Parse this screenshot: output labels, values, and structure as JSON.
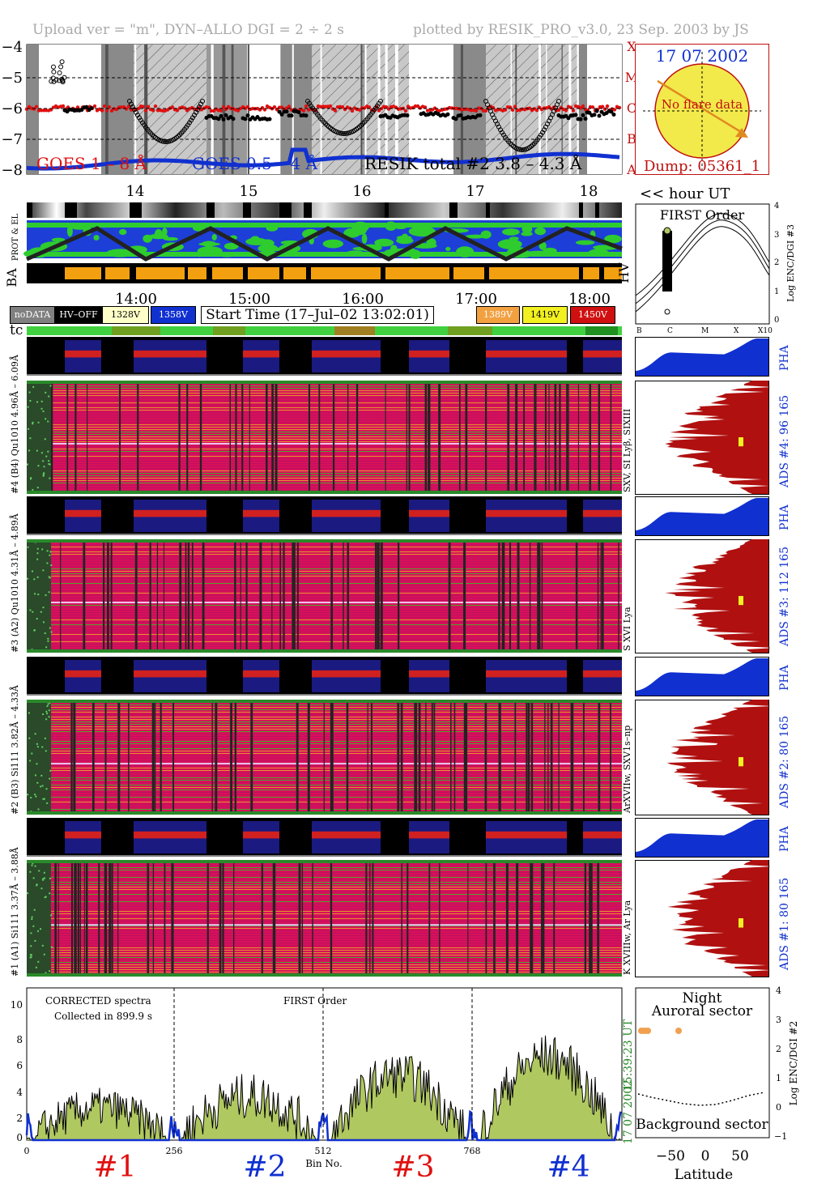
{
  "header": {
    "left": "Upload ver = \"m\", DYN–ALLO DGI =   2 ÷   2 s",
    "right": "plotted by RESIK_PRO_v3.0, 23 Sep. 2003 by JS"
  },
  "goes_panel": {
    "y_ticks": [
      "−4",
      "−5",
      "−6",
      "−7",
      "−8"
    ],
    "class_ticks": [
      "X",
      "M",
      "C",
      "B",
      "A"
    ],
    "legend_goes18": "GOES 1 – 8 Å",
    "legend_goes054": "GOES 0.5 – 4 Å",
    "legend_resik": "RESIK total #2 3.8 – 4.3 Å",
    "hour_ticks": [
      "14",
      "15",
      "16",
      "17",
      "18"
    ],
    "hour_label": "<< hour UT"
  },
  "info_box": {
    "date": "17 07 2002",
    "no_flare": "No flare data",
    "dump": "Dump: 05361_1"
  },
  "status_panel": {
    "label_prot": "PROT & EL",
    "label_ba": "BA",
    "label_hv": "HV",
    "time_ticks": [
      "14:00",
      "15:00",
      "16:00",
      "17:00",
      "18:00"
    ],
    "legend": [
      "noDATA",
      "HV–OFF",
      "1328V",
      "1358V",
      "1389V",
      "1419V",
      "1450V"
    ],
    "start_time": "Start Time (17–Jul–02 13:02:01)",
    "tc_label": "tc"
  },
  "first_order": {
    "title": "FIRST Order",
    "y_ticks": [
      "4",
      "3",
      "2",
      "1",
      "0"
    ],
    "x_ticks": [
      "B",
      "C",
      "M",
      "X",
      "X10"
    ],
    "ylabel": "Log ENC/DGI #3"
  },
  "channels": [
    {
      "range": "#4 (B4) Qu1010 4.96Å – 6.09Å",
      "lines": "SXV, SI Lyβ, SIXIII",
      "ads": "ADS #4:   96 165",
      "pha": "PHA"
    },
    {
      "range": "#3 (A2) Qu1010  4.31Å – 4.89Å",
      "lines": "S XVI Lya",
      "ads": "ADS #3:   112 165",
      "pha": "PHA"
    },
    {
      "range": "#2 (B3) Si111  3.82Å – 4.33Å",
      "lines": "ArXVIIw, SXV1s–np",
      "ads": "ADS #2:   80 165",
      "pha": "PHA"
    },
    {
      "range": "#1 (A1) Si111  3.37Å – 3.88Å",
      "lines": "K XVIIIw, Ar Lya",
      "ads": "ADS #1:   80 165",
      "pha": "PHA"
    }
  ],
  "bottom_spectrum": {
    "corrected": "CORRECTED spectra",
    "collected": "Collected in    899.9 s",
    "first_order": "FIRST Order",
    "y_ticks": [
      "10",
      "8",
      "6",
      "4",
      "2",
      "0"
    ],
    "x_ticks": [
      "0",
      "256",
      "512",
      "768"
    ],
    "xlabel": "Bin No.",
    "time": "15:39:23 UT",
    "date": "17 07 2002",
    "channel_labels": [
      "#1",
      "#2",
      "#3",
      "#4"
    ],
    "channel_colors": [
      "#e01010",
      "#1030d0",
      "#e01010",
      "#1030d0"
    ]
  },
  "latitude_panel": {
    "night": "Night",
    "auroral": "Auroral sector",
    "background": "Background sector",
    "x_ticks": [
      "−50",
      "0",
      "50"
    ],
    "xlabel": "Latitude",
    "y_ticks": [
      "4",
      "3",
      "2",
      "1",
      "0",
      "−1"
    ],
    "ylabel": "Log ENC/DGI #2"
  },
  "colors": {
    "goes18": "#e01010",
    "goes054": "#1030d0",
    "magenta": "#d8105a",
    "pha_blue": "#1030d0",
    "ads_red": "#b01010",
    "spectrum_fill": "#b0c860",
    "sun": "#f2e94a"
  }
}
